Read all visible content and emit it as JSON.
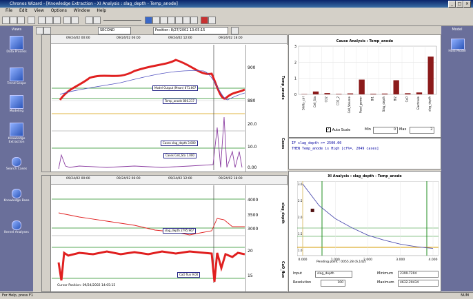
{
  "window": {
    "title": "Chronos Wizard - [Knowledge Extraction - XI Analysis : slag_depth - Temp_anode]"
  },
  "menu": [
    "File",
    "Edit",
    "View",
    "Options",
    "Window",
    "Help"
  ],
  "toolbar": {
    "combo1": "SECOND",
    "combo2": "Position: 8/27/2002 13:05:15"
  },
  "sidebar": [
    {
      "label": "Data Process",
      "icon": "datasource-icon"
    },
    {
      "label": "Trend Scope",
      "icon": "trend-icon"
    },
    {
      "label": "Modeling",
      "icon": "modeling-icon"
    },
    {
      "label": "Knowledge Extraction",
      "icon": "knowledge-icon"
    },
    {
      "label": "Search Cases",
      "icon": "search-cases-icon"
    },
    {
      "label": "Knowledge Base",
      "icon": "knowledge-base-icon"
    },
    {
      "label": "Kernel Analyses",
      "icon": "kernel-icon"
    }
  ],
  "rightpane": {
    "header": "Model",
    "item": "Hold Model"
  },
  "trend_top": {
    "dates": [
      "09/24/02 00:00",
      "09/24/02 06:00",
      "09/24/02 12:00",
      "09/24/02 18:00"
    ],
    "axis1_title": "Temp_anode",
    "axis2_title": "Cases",
    "y1_ticks": [
      "900",
      "880"
    ],
    "y2_ticks": [
      "20.0",
      "10.0",
      "0.00"
    ],
    "tag1": "Model Output (Mean) 871.667",
    "tag2": "Temp_anode 866.217",
    "tag3": "Cases slag_depth 3.000",
    "tag4": "Cases Cell_Sta 1.000"
  },
  "trend_bottom": {
    "dates": [
      "09/24/02 00:00",
      "09/24/02 06:00",
      "09/24/02 12:00",
      "09/24/02 18:00"
    ],
    "axis1_title": "slag_depth",
    "axis2_title": "CaO_flux",
    "y1_ticks": [
      "4000",
      "3500",
      "3000"
    ],
    "y2_ticks": [
      "20",
      "15"
    ],
    "tag1": "slag_depth 2795.967",
    "tag2": "CaO flux 9.00",
    "footer": "Cursor Position: 09/24/2002 14:05:15"
  },
  "chart_data": [
    {
      "type": "bar",
      "title": "Cause Analysis : Temp_anode",
      "categories": [
        "Shifts_ctrl",
        "Cell_Sta",
        "CO2",
        "CO2_2",
        "Cell_Volume",
        "Feed_power",
        "Bl1",
        "Slag_depth",
        "Bl2",
        "CaO",
        "Electrode",
        "slag_depth"
      ],
      "values": [
        0.02,
        0.18,
        0.08,
        0.03,
        0.06,
        0.92,
        0.04,
        0.05,
        0.88,
        0.07,
        0.12,
        2.35
      ],
      "ylim": [
        0,
        3
      ],
      "yticks": [
        "3",
        "2",
        "1",
        "0"
      ]
    },
    {
      "type": "scatter",
      "title": "XI Analysis : slag_depth - Temp_anode",
      "xlabel": "Pending point : 0055.28 (6,142)",
      "x_ticks": [
        "0.000",
        "1.000",
        "2.000",
        "3.000",
        "4.000"
      ],
      "y_ticks": [
        "3.0",
        "2.5",
        "2.0",
        "1.5",
        "1.0"
      ],
      "curve": [
        [
          0,
          3.0
        ],
        [
          0.5,
          2.35
        ],
        [
          1.0,
          1.95
        ],
        [
          1.5,
          1.68
        ],
        [
          2.0,
          1.45
        ],
        [
          2.5,
          1.3
        ],
        [
          3.0,
          1.18
        ],
        [
          3.5,
          1.1
        ],
        [
          4.0,
          1.05
        ]
      ],
      "marker": [
        0.3,
        2.2
      ]
    }
  ],
  "bar_panel": {
    "auto_scale": "Auto Scale",
    "min_label": "Min",
    "min_value": "0",
    "max_label": "Max",
    "max_value": "3"
  },
  "text_panel": {
    "line1": "IF slag_depth >= 2500.00",
    "line2": "THEN Temp_anode is High [cf%=, 2049 cases]"
  },
  "xi_panel": {
    "input_label": "Input",
    "input_value": "slag_depth",
    "resolution_label": "Resolution",
    "resolution_value": "100",
    "minimum_label": "Minimum",
    "minimum_value": "2399.7204",
    "maximum_label": "Maximum",
    "maximum_value": "4632.20434"
  },
  "status": {
    "left": "For Help, press F1",
    "right": "NUM"
  }
}
